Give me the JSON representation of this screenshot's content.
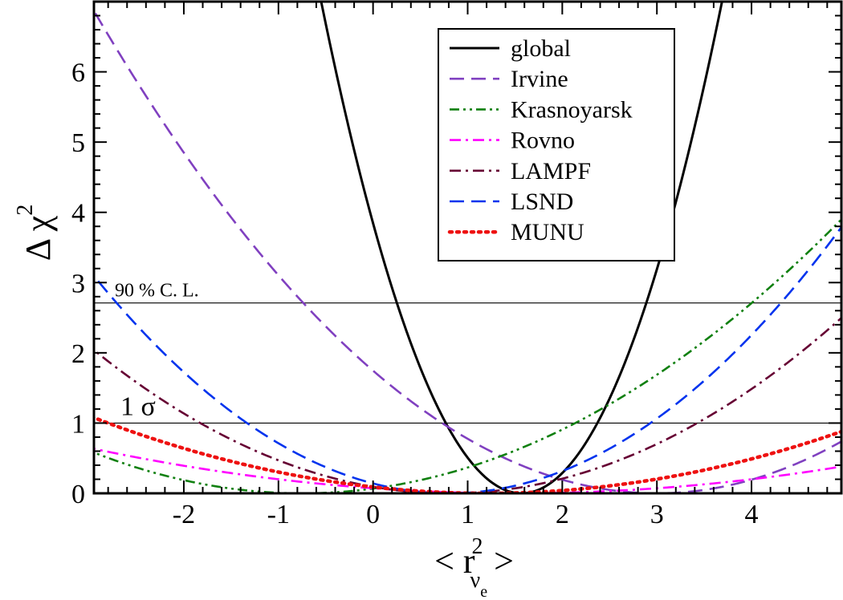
{
  "chart_data": {
    "type": "line",
    "xlim": [
      -2.95,
      4.95
    ],
    "ylim": [
      0,
      7
    ],
    "xticks": [
      "-2",
      "-1",
      "0",
      "1",
      "2",
      "3",
      "4"
    ],
    "xtick_values": [
      -2,
      -1,
      0,
      1,
      2,
      3,
      4
    ],
    "yticks": [
      "0",
      "1",
      "2",
      "3",
      "4",
      "5",
      "6"
    ],
    "ytick_values": [
      0,
      1,
      2,
      3,
      4,
      5,
      6
    ],
    "x_minor_step": 0.2,
    "y_minor_step": 0.2,
    "ylabel": {
      "main": "Δ χ",
      "sup": "2"
    },
    "xlabel": {
      "left": "<",
      "main": "r",
      "sup": "2",
      "sub": "ν",
      "subsub": "e",
      "right": ">"
    },
    "reference_lines": [
      {
        "y": 2.71,
        "label": "90 % C. L."
      },
      {
        "y": 1.0,
        "label": "1 σ"
      }
    ],
    "grid": false,
    "legend_position": "top-right",
    "series": [
      {
        "name": "global",
        "color": "#000000",
        "dash": "solid",
        "min_x": 1.57,
        "min_y": 0.0,
        "curvature": 1.56,
        "x": [
          -1.35,
          0.0,
          1.57,
          3.0,
          4.3
        ],
        "y": [
          6.9,
          2.1,
          0.0,
          2.6,
          6.9
        ]
      },
      {
        "name": "Irvine",
        "color": "#8040c0",
        "dash": "long-dash",
        "min_x": 3.0,
        "min_y": 0.0,
        "curvature": 0.194,
        "x": [
          -3.0,
          -1.0,
          1.0,
          3.0,
          5.0
        ],
        "y": [
          7.0,
          3.1,
          0.78,
          0.0,
          0.78
        ]
      },
      {
        "name": "Krasnoyarsk",
        "color": "#108010",
        "dash": "dash-dot-dot",
        "min_x": -0.75,
        "min_y": 0.0,
        "curvature": 0.12,
        "x": [
          -3.0,
          -0.75,
          1.0,
          3.0,
          5.0
        ],
        "y": [
          0.6,
          0.0,
          0.37,
          2.17,
          3.97
        ]
      },
      {
        "name": "Rovno",
        "color": "#ff00ff",
        "dash": "dash-dot",
        "min_x": 1.5,
        "min_y": 0.0,
        "curvature": 0.032,
        "x": [
          -3.0,
          -1.0,
          1.5,
          3.0,
          5.0
        ],
        "y": [
          0.65,
          0.2,
          0.0,
          0.07,
          0.39
        ]
      },
      {
        "name": "LAMPF",
        "color": "#660033",
        "dash": "dash-dot",
        "min_x": 0.8,
        "min_y": 0.0,
        "curvature": 0.145,
        "x": [
          -3.0,
          -1.0,
          0.8,
          3.0,
          5.0
        ],
        "y": [
          2.09,
          0.47,
          0.0,
          0.7,
          2.56
        ]
      },
      {
        "name": "LSND",
        "color": "#0033ee",
        "dash": "long-dash",
        "min_x": 0.8,
        "min_y": 0.0,
        "curvature": 0.22,
        "x": [
          -3.0,
          -1.0,
          0.8,
          3.0,
          5.0
        ],
        "y": [
          3.18,
          0.71,
          0.0,
          1.06,
          3.88
        ]
      },
      {
        "name": "MUNU",
        "color": "#ee1111",
        "dash": "dotted",
        "min_x": 1.2,
        "min_y": 0.0,
        "curvature": 0.0625,
        "x": [
          -3.0,
          -1.0,
          1.2,
          3.0,
          5.0
        ],
        "y": [
          1.1,
          0.3,
          0.0,
          0.2,
          0.9
        ]
      }
    ]
  }
}
